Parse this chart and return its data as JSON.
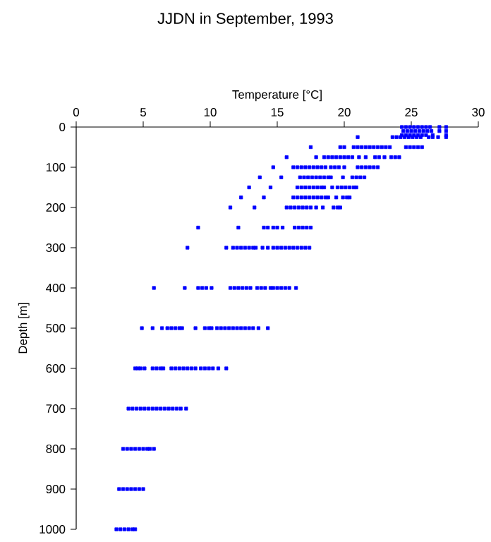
{
  "chart_data": {
    "type": "scatter",
    "title": "JJDN in September, 1993",
    "xlabel": "Temperature [°C]",
    "ylabel": "Depth [m]",
    "xlim": [
      0,
      30
    ],
    "xticks": [
      0,
      5,
      10,
      15,
      20,
      25,
      30
    ],
    "ylim": [
      1000,
      0
    ],
    "yticks": [
      0,
      100,
      200,
      300,
      400,
      500,
      600,
      700,
      800,
      900,
      1000
    ],
    "marker": "square",
    "grid": false,
    "series": [
      {
        "color": "#0000ff",
        "x": [
          24.3,
          24.6,
          24.9,
          25.2,
          25.5,
          25.8,
          26.1,
          26.4,
          27.1,
          27.6,
          24.4,
          24.7,
          25.0,
          25.3,
          25.6,
          25.9,
          26.2,
          26.5,
          27.1,
          27.6,
          24.3,
          24.6,
          24.9,
          25.2,
          25.5,
          25.8,
          26.1,
          26.6,
          27.6,
          21.0,
          23.6,
          23.9,
          24.2,
          24.5,
          24.8,
          25.1,
          25.4,
          25.7,
          26.3,
          26.6,
          27.0,
          27.6,
          17.5,
          19.7,
          20.0,
          20.7,
          21.0,
          21.3,
          21.6,
          21.9,
          22.2,
          22.5,
          22.8,
          23.1,
          23.4,
          24.6,
          24.9,
          25.2,
          25.5,
          25.8,
          15.7,
          17.9,
          18.5,
          18.8,
          19.1,
          19.4,
          19.7,
          20.0,
          20.3,
          20.6,
          21.1,
          21.6,
          22.3,
          22.6,
          23.0,
          23.5,
          23.8,
          24.1,
          14.7,
          16.2,
          16.5,
          16.8,
          17.1,
          17.4,
          17.7,
          18.0,
          18.3,
          18.6,
          19.0,
          19.3,
          19.6,
          20.0,
          21.0,
          21.3,
          21.6,
          21.9,
          22.2,
          22.5,
          13.7,
          15.3,
          16.7,
          17.0,
          17.3,
          17.6,
          17.9,
          18.2,
          18.5,
          18.8,
          19.0,
          19.9,
          20.6,
          20.9,
          21.2,
          21.5,
          12.9,
          14.5,
          16.5,
          16.8,
          17.1,
          17.4,
          17.7,
          18.0,
          18.3,
          18.5,
          19.1,
          19.5,
          19.8,
          20.1,
          20.4,
          20.7,
          20.9,
          12.3,
          14.0,
          16.2,
          16.5,
          16.8,
          17.1,
          17.4,
          17.7,
          18.0,
          18.3,
          18.6,
          18.8,
          19.4,
          19.9,
          20.2,
          20.4,
          11.5,
          13.3,
          15.7,
          16.0,
          16.3,
          16.6,
          16.9,
          17.2,
          17.5,
          17.9,
          18.4,
          19.2,
          19.5,
          19.7,
          9.1,
          12.1,
          14.0,
          14.3,
          14.7,
          15.0,
          15.4,
          16.3,
          16.6,
          16.9,
          17.2,
          17.5,
          8.3,
          11.2,
          11.7,
          12.0,
          12.3,
          12.6,
          12.9,
          13.2,
          13.4,
          13.9,
          14.3,
          14.7,
          15.0,
          15.3,
          15.6,
          15.9,
          16.2,
          16.5,
          16.8,
          17.1,
          17.4,
          5.8,
          8.1,
          9.1,
          9.4,
          9.7,
          10.1,
          11.5,
          11.8,
          12.1,
          12.4,
          12.7,
          13.0,
          13.5,
          13.8,
          14.1,
          14.5,
          14.7,
          15.0,
          15.3,
          15.6,
          15.9,
          16.4,
          4.9,
          5.7,
          6.4,
          6.8,
          7.1,
          7.4,
          7.7,
          7.9,
          8.9,
          9.6,
          9.9,
          10.1,
          10.5,
          10.8,
          11.1,
          11.4,
          11.7,
          12.0,
          12.3,
          12.6,
          12.9,
          13.2,
          13.6,
          14.3,
          4.4,
          4.6,
          4.8,
          5.1,
          5.7,
          6.0,
          6.3,
          6.5,
          7.1,
          7.4,
          7.7,
          8.0,
          8.3,
          8.6,
          8.9,
          9.3,
          9.6,
          9.9,
          10.2,
          10.6,
          11.2,
          3.9,
          4.2,
          4.5,
          4.8,
          5.1,
          5.4,
          5.7,
          6.0,
          6.3,
          6.6,
          6.9,
          7.2,
          7.5,
          7.8,
          8.2,
          3.5,
          3.8,
          4.1,
          4.4,
          4.7,
          5.0,
          5.3,
          5.5,
          5.8,
          3.2,
          3.5,
          3.8,
          4.1,
          4.4,
          4.7,
          5.0,
          3.0,
          3.3,
          3.6,
          3.9,
          4.2,
          4.4
        ],
        "values": [
          0,
          0,
          0,
          0,
          0,
          0,
          0,
          0,
          0,
          0,
          10,
          10,
          10,
          10,
          10,
          10,
          10,
          10,
          10,
          10,
          20,
          20,
          20,
          20,
          20,
          20,
          20,
          20,
          20,
          25,
          25,
          25,
          25,
          25,
          25,
          25,
          25,
          25,
          25,
          25,
          25,
          25,
          50,
          50,
          50,
          50,
          50,
          50,
          50,
          50,
          50,
          50,
          50,
          50,
          50,
          50,
          50,
          50,
          50,
          50,
          75,
          75,
          75,
          75,
          75,
          75,
          75,
          75,
          75,
          75,
          75,
          75,
          75,
          75,
          75,
          75,
          75,
          75,
          100,
          100,
          100,
          100,
          100,
          100,
          100,
          100,
          100,
          100,
          100,
          100,
          100,
          100,
          100,
          100,
          100,
          100,
          100,
          100,
          125,
          125,
          125,
          125,
          125,
          125,
          125,
          125,
          125,
          125,
          125,
          125,
          125,
          125,
          125,
          125,
          150,
          150,
          150,
          150,
          150,
          150,
          150,
          150,
          150,
          150,
          150,
          150,
          150,
          150,
          150,
          150,
          150,
          175,
          175,
          175,
          175,
          175,
          175,
          175,
          175,
          175,
          175,
          175,
          175,
          175,
          175,
          175,
          175,
          200,
          200,
          200,
          200,
          200,
          200,
          200,
          200,
          200,
          200,
          200,
          200,
          200,
          200,
          250,
          250,
          250,
          250,
          250,
          250,
          250,
          250,
          250,
          250,
          250,
          250,
          300,
          300,
          300,
          300,
          300,
          300,
          300,
          300,
          300,
          300,
          300,
          300,
          300,
          300,
          300,
          300,
          300,
          300,
          300,
          300,
          300,
          400,
          400,
          400,
          400,
          400,
          400,
          400,
          400,
          400,
          400,
          400,
          400,
          400,
          400,
          400,
          400,
          400,
          400,
          400,
          400,
          400,
          400,
          500,
          500,
          500,
          500,
          500,
          500,
          500,
          500,
          500,
          500,
          500,
          500,
          500,
          500,
          500,
          500,
          500,
          500,
          500,
          500,
          500,
          500,
          500,
          500,
          600,
          600,
          600,
          600,
          600,
          600,
          600,
          600,
          600,
          600,
          600,
          600,
          600,
          600,
          600,
          600,
          600,
          600,
          600,
          600,
          600,
          700,
          700,
          700,
          700,
          700,
          700,
          700,
          700,
          700,
          700,
          700,
          700,
          700,
          700,
          700,
          800,
          800,
          800,
          800,
          800,
          800,
          800,
          800,
          800,
          900,
          900,
          900,
          900,
          900,
          900,
          900,
          1000,
          1000,
          1000,
          1000,
          1000,
          1000
        ]
      }
    ]
  }
}
